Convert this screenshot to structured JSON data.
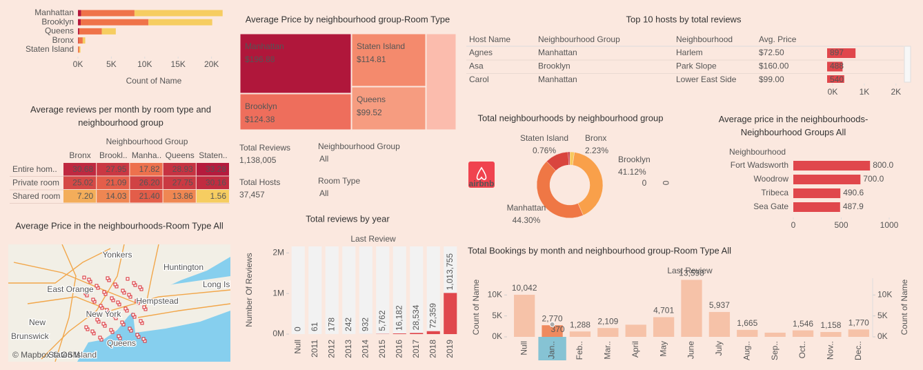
{
  "chart_data": [
    {
      "type": "bar",
      "orientation": "horizontal",
      "stacked": true,
      "x_label": "Count of Name",
      "categories": [
        "Manhattan",
        "Brooklyn",
        "Queens",
        "Bronx",
        "Staten Island"
      ],
      "series": [
        {
          "color": "#b5173c",
          "values": [
            480,
            413,
            198,
            60,
            9
          ]
        },
        {
          "color": "#ef7349",
          "values": [
            7982,
            10132,
            3372,
            652,
            188
          ]
        },
        {
          "color": "#f6cd61",
          "values": [
            13199,
            9559,
            2096,
            379,
            176
          ]
        }
      ],
      "xlim": [
        0,
        22000
      ],
      "xticks": [
        {
          "value": 0,
          "label": "0K"
        },
        {
          "value": 5000,
          "label": "5K"
        },
        {
          "value": 10000,
          "label": "10K"
        },
        {
          "value": 15000,
          "label": "15K"
        },
        {
          "value": 20000,
          "label": "20K"
        }
      ]
    },
    {
      "type": "treemap",
      "title": "Average Price by neighbourhood group-Room Type",
      "categories": [
        "Manhattan",
        "Staten Island",
        "Brooklyn",
        "Queens",
        null
      ],
      "values": [
        196.88,
        114.81,
        124.38,
        99.52,
        87.5
      ],
      "value_labels": [
        "$196.88",
        "$114.81",
        "$124.38",
        "$99.52",
        null
      ],
      "colors": [
        "#b0173b",
        "#f48a6d",
        "#ee6e5c",
        "#f69c80",
        "#fbbcad"
      ]
    },
    {
      "type": "heatmap",
      "title": "Average reviews per month by room type and neighbourhood group",
      "column_header": "Neighbourhood Group",
      "columns": [
        "Bronx",
        "Brookl..",
        "Manha..",
        "Queens",
        "Staten.."
      ],
      "rows": [
        "Entire hom..",
        "Private room",
        "Shared room"
      ],
      "values": [
        [
          30.68,
          27.95,
          17.82,
          28.93,
          33.28
        ],
        [
          25.02,
          21.09,
          26.2,
          27.75,
          30.16
        ],
        [
          7.2,
          14.03,
          21.4,
          13.86,
          1.56
        ]
      ],
      "value_labels": [
        [
          "30.68",
          "27.95",
          "17.82",
          "28.93",
          "33.28"
        ],
        [
          "25.02",
          "21.09",
          "26.20",
          "27.75",
          "30.16"
        ],
        [
          "7.20",
          "14.03",
          "21.40",
          "13.86",
          "1.56"
        ]
      ]
    },
    {
      "type": "bar",
      "orientation": "vertical",
      "title": "Total reviews by year",
      "subtitle": "Last Review",
      "y_label": "Number Of Reviews",
      "categories": [
        "Null",
        "2011",
        "2012",
        "2013",
        "2014",
        "2015",
        "2016",
        "2017",
        "2018",
        "2019"
      ],
      "values": [
        0,
        61,
        178,
        242,
        932,
        5762,
        16182,
        28534,
        72359,
        1013755
      ],
      "value_labels": [
        "0",
        "61",
        "178",
        "242",
        "932",
        "5,762",
        "16,182",
        "28,534",
        "72,359",
        "1,013,755"
      ],
      "color": "#e0474c",
      "ylim": [
        0,
        2160000
      ],
      "yticks": [
        {
          "value": 0,
          "label": "0M"
        },
        {
          "value": 1000000,
          "label": "1M"
        },
        {
          "value": 2000000,
          "label": "2M"
        }
      ]
    },
    {
      "type": "pie",
      "hole": true,
      "title": "Total neighbourhoods by neighbourhood group",
      "categories": [
        "Bronx",
        "Brooklyn",
        "Manhattan",
        null,
        "Staten Island"
      ],
      "values": [
        2.23,
        41.12,
        44.3,
        11.59,
        0.76
      ],
      "value_labels": [
        "2.23%",
        "41.12%",
        "44.30%",
        null,
        "0.76%"
      ],
      "colors": [
        "#f8c95e",
        "#f9a04a",
        "#ef7745",
        "#d9453e",
        "#b91f3a"
      ],
      "annotations": [
        "0",
        "0"
      ]
    },
    {
      "type": "bar",
      "orientation": "horizontal",
      "title": "Average price in the neighbourhoods-Neighbourhood Groups All",
      "category_header": "Neighbourhood",
      "categories": [
        "Fort Wadsworth",
        "Woodrow",
        "Tribeca",
        "Sea Gate"
      ],
      "values": [
        800,
        700,
        490.6,
        487.9
      ],
      "value_labels": [
        "800.0",
        "700.0",
        "490.6",
        "487.9"
      ],
      "color": "#e0474c",
      "xlim": [
        0,
        1000
      ],
      "xticks": [
        0,
        500,
        1000
      ]
    },
    {
      "type": "bar",
      "orientation": "vertical",
      "title": "Total Bookings by month and neighbourhood group-Room Type All",
      "subtitle": "Last Review",
      "y_label": "Count of Name",
      "y2_label": "Count of Name",
      "categories": [
        "Null",
        "Jan..",
        "Feb..",
        "Mar..",
        "April",
        "May",
        "June",
        "July",
        "Aug..",
        "Sep..",
        "Oct..",
        "Nov..",
        "Dec.."
      ],
      "values": [
        10042,
        2770,
        1288,
        2109,
        2900,
        4701,
        13598,
        5937,
        1665,
        1000,
        1546,
        1158,
        1770
      ],
      "value_labels": [
        "10,042",
        "2,770",
        "1,288",
        "2,109",
        null,
        "4,701",
        "13,598",
        "5,937",
        "1,665",
        null,
        "1,546",
        "1,158",
        "1,770"
      ],
      "annotations": [
        "370"
      ],
      "color": "#f6c2a8",
      "highlight_color": "#ef8a5f",
      "ylim": [
        0,
        14000
      ],
      "yticks": [
        {
          "value": 0,
          "label": "0K"
        },
        {
          "value": 5000,
          "label": "5K"
        },
        {
          "value": 10000,
          "label": "10K"
        }
      ],
      "y2lim": [
        0,
        14000
      ],
      "y2ticks": [
        {
          "value": 0,
          "label": "0K"
        },
        {
          "value": 5000,
          "label": "5K"
        },
        {
          "value": 10000,
          "label": "10K"
        }
      ]
    }
  ],
  "kpis": [
    {
      "label": "Total Reviews",
      "value": "1,138,005"
    },
    {
      "label": "Total Hosts",
      "value": "37,457"
    }
  ],
  "filters": [
    {
      "label": "Neighbourhood Group",
      "value": "All"
    },
    {
      "label": "Room Type",
      "value": "All"
    }
  ],
  "hosts": {
    "title": "Top 10 hosts by total reviews",
    "columns": [
      "Host Name",
      "Neighbourhood Group",
      "Neighbourhood",
      "Avg. Price"
    ],
    "rows": [
      {
        "host": "Agnes",
        "group": "Manhattan",
        "neighbourhood": "Harlem",
        "price": "$72.50",
        "reviews": 897
      },
      {
        "host": "Asa",
        "group": "Brooklyn",
        "neighbourhood": "Park Slope",
        "price": "$160.00",
        "reviews": 488
      },
      {
        "host": "Carol",
        "group": "Manhattan",
        "neighbourhood": "Lower East Side",
        "price": "$99.00",
        "reviews": 540
      }
    ],
    "xlim": [
      0,
      2200
    ],
    "xticks": [
      {
        "value": 0,
        "label": "0K"
      },
      {
        "value": 1000,
        "label": "1K"
      },
      {
        "value": 2000,
        "label": "2K"
      }
    ]
  },
  "map": {
    "title": "Average Price in the neighbourhoods-Room Type All",
    "places": [
      "Yonkers",
      "Huntington",
      "East Orange",
      "Hempstead",
      "New",
      "Brunswick",
      "New York",
      "Queens",
      "Staten Island",
      "Long Island"
    ],
    "attribution": "© Mapbox © OSM"
  },
  "logo": "airbnb"
}
